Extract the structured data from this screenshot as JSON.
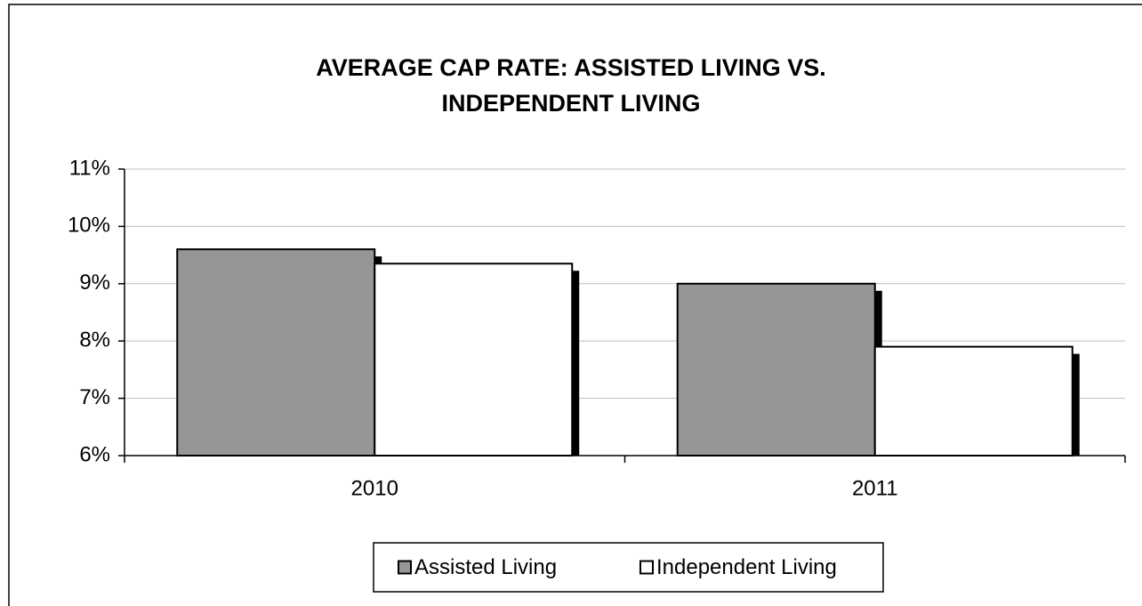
{
  "chart_data": {
    "type": "bar",
    "title": "AVERAGE CAP RATE: ASSISTED LIVING VS. INDEPENDENT LIVING",
    "categories": [
      "2010",
      "2011"
    ],
    "series": [
      {
        "name": "Assisted Living",
        "color": "#969696",
        "values": [
          9.6,
          9.0
        ]
      },
      {
        "name": "Independent Living",
        "color": "#ffffff",
        "values": [
          9.35,
          7.9
        ]
      }
    ],
    "ylim": [
      6,
      11
    ],
    "yticks": [
      {
        "value": 6,
        "label": "6%"
      },
      {
        "value": 7,
        "label": "7%"
      },
      {
        "value": 8,
        "label": "8%"
      },
      {
        "value": 9,
        "label": "9%"
      },
      {
        "value": 10,
        "label": "10%"
      },
      {
        "value": 11,
        "label": "11%"
      }
    ],
    "grid": true,
    "legend": "bottom"
  }
}
